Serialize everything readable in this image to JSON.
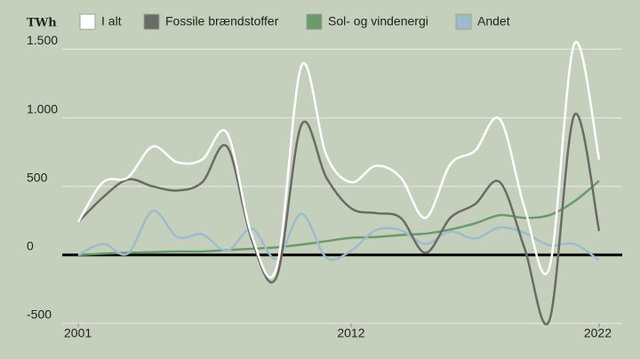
{
  "chart_data": {
    "type": "line",
    "y_unit_label": "TWh",
    "x": [
      2001,
      2002,
      2003,
      2004,
      2005,
      2006,
      2007,
      2008,
      2009,
      2010,
      2011,
      2012,
      2013,
      2014,
      2015,
      2016,
      2017,
      2018,
      2019,
      2020,
      2021,
      2022
    ],
    "xlim": [
      2001,
      2022
    ],
    "xticks": [
      2001,
      2012,
      2022
    ],
    "ylim": [
      -500,
      1600
    ],
    "yticks": [
      -500,
      0,
      500,
      {
        "value": 1000,
        "label": "1.000"
      },
      {
        "value": 1500,
        "label": "1.500"
      }
    ],
    "grid": true,
    "legend": "top",
    "series": [
      {
        "name": "I alt",
        "color": "#ffffff",
        "values": [
          240,
          530,
          565,
          790,
          675,
          695,
          890,
          140,
          -90,
          1380,
          730,
          530,
          650,
          565,
          270,
          660,
          760,
          990,
          340,
          -90,
          1540,
          695
        ]
      },
      {
        "name": "Fossile brændstoffer",
        "color": "#6b6b66",
        "values": [
          240,
          420,
          550,
          500,
          470,
          530,
          790,
          110,
          -160,
          950,
          565,
          340,
          305,
          270,
          15,
          270,
          370,
          530,
          45,
          -475,
          1020,
          175
        ]
      },
      {
        "name": "Sol- og vindenergi",
        "color": "#6a9a6a",
        "values": [
          0,
          10,
          15,
          20,
          25,
          25,
          35,
          45,
          55,
          75,
          100,
          125,
          130,
          145,
          155,
          185,
          230,
          290,
          270,
          290,
          390,
          540
        ]
      },
      {
        "name": "Andet",
        "color": "#9dbccb",
        "values": [
          0,
          80,
          10,
          320,
          130,
          150,
          30,
          190,
          -30,
          300,
          -20,
          30,
          180,
          180,
          80,
          170,
          120,
          200,
          160,
          70,
          80,
          -40
        ]
      }
    ]
  }
}
